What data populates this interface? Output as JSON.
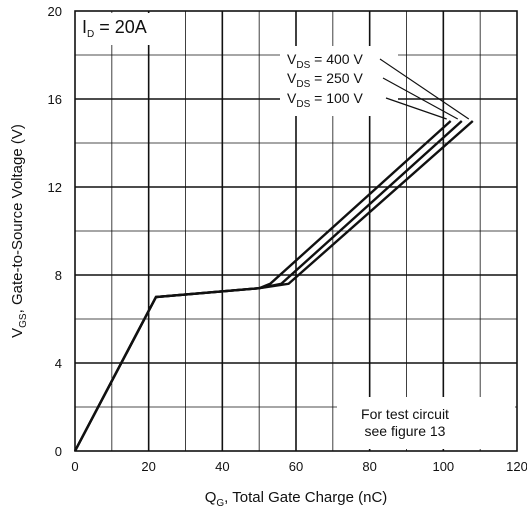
{
  "chart_data": {
    "type": "line",
    "xlabel": {
      "main": "Q",
      "sub": "G",
      "rest": ", Total Gate Charge (nC)"
    },
    "ylabel": {
      "main": "V",
      "sub": "GS",
      "rest": ", Gate-to-Source Voltage (V)"
    },
    "xlim": [
      0,
      120
    ],
    "ylim": [
      0,
      20
    ],
    "xticks": [
      0,
      20,
      40,
      60,
      80,
      100,
      120
    ],
    "yticks": [
      0,
      4,
      8,
      12,
      16,
      20
    ],
    "x_minor_step": 10,
    "y_minor_step": 2,
    "grid": true,
    "condition": {
      "main": "I",
      "sub": "D",
      "rest": " = 20A"
    },
    "note_lines": [
      "For test circuit",
      "see figure 13"
    ],
    "series": [
      {
        "name": "V_DS = 400 V",
        "label": {
          "main": "V",
          "sub": "DS",
          "rest": " = 400 V"
        },
        "x": [
          0,
          22,
          50,
          58,
          108
        ],
        "y": [
          0,
          7.0,
          7.4,
          7.6,
          15.0
        ]
      },
      {
        "name": "V_DS = 250 V",
        "label": {
          "main": "V",
          "sub": "DS",
          "rest": " = 250 V"
        },
        "x": [
          0,
          22,
          50,
          56,
          105
        ],
        "y": [
          0,
          7.0,
          7.4,
          7.6,
          15.0
        ]
      },
      {
        "name": "V_DS = 100 V",
        "label": {
          "main": "V",
          "sub": "DS",
          "rest": " = 100 V"
        },
        "x": [
          0,
          22,
          50,
          53,
          102
        ],
        "y": [
          0,
          7.0,
          7.4,
          7.6,
          15.0
        ]
      }
    ],
    "line_color": "#111111"
  }
}
